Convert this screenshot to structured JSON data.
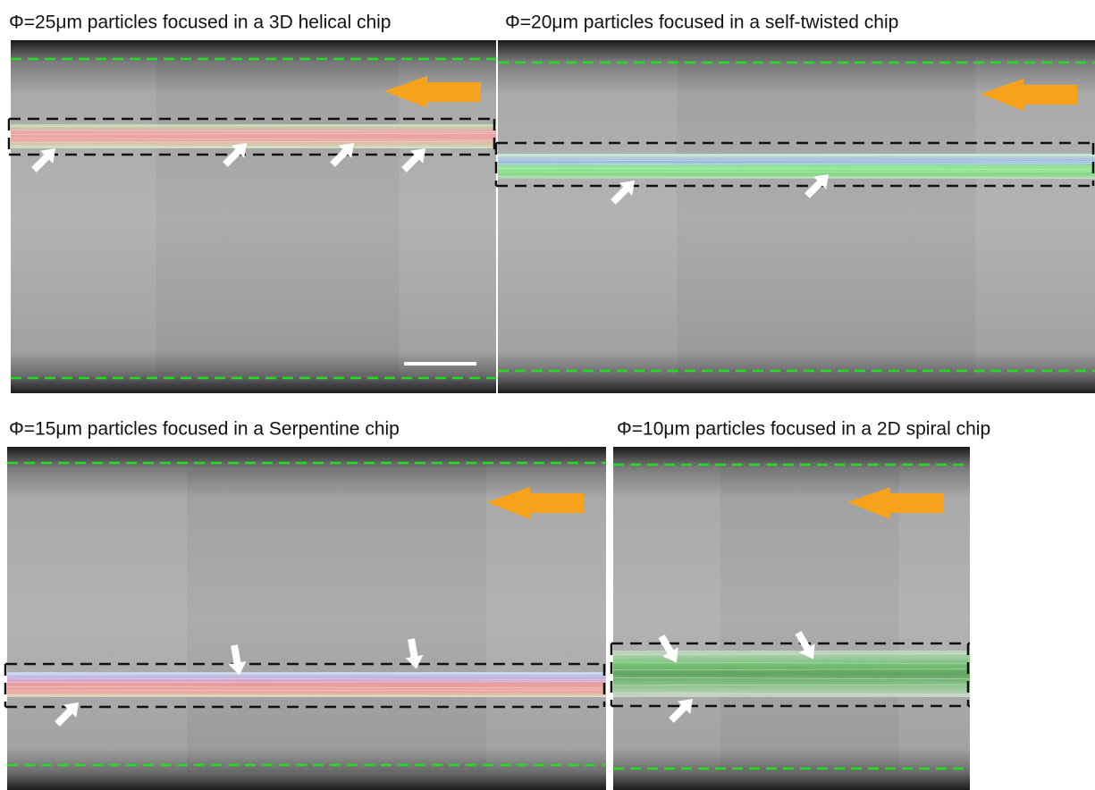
{
  "panels": [
    {
      "title": "Φ=25μm particles focused in a 3D helical chip"
    },
    {
      "title": "Φ=20μm particles focused in a self-twisted chip"
    },
    {
      "title": "Φ=15μm particles focused in a Serpentine chip"
    },
    {
      "title": "Φ=10μm particles focused in a 2D spiral chip"
    }
  ]
}
